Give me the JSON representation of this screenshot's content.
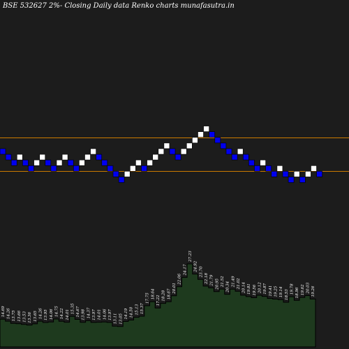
{
  "title": "BSE 532627 2%-  Closing Daily data  Renko  charts munafasutra.in",
  "colors": {
    "background": "#1c1c1c",
    "up_brick": "#ffffff",
    "down_brick": "#0000ee",
    "reference_line": "#cc7a00",
    "volume_fill": "#1e3a1e",
    "volume_line": "#000000",
    "label_text": "#ffffff"
  },
  "chart_data": [
    {
      "type": "renko",
      "title": "BSE 532627 2%-  Closing Daily data  Renko  charts munafasutra.in",
      "brick_size": "2%",
      "bricks": [
        {
          "level": 0,
          "dir": "down"
        },
        {
          "level": -1,
          "dir": "down"
        },
        {
          "level": -2,
          "dir": "down"
        },
        {
          "level": -1,
          "dir": "up"
        },
        {
          "level": -2,
          "dir": "down"
        },
        {
          "level": -3,
          "dir": "down"
        },
        {
          "level": -2,
          "dir": "up"
        },
        {
          "level": -1,
          "dir": "up"
        },
        {
          "level": -2,
          "dir": "down"
        },
        {
          "level": -3,
          "dir": "down"
        },
        {
          "level": -2,
          "dir": "up"
        },
        {
          "level": -1,
          "dir": "up"
        },
        {
          "level": -2,
          "dir": "down"
        },
        {
          "level": -3,
          "dir": "down"
        },
        {
          "level": -2,
          "dir": "up"
        },
        {
          "level": -1,
          "dir": "up"
        },
        {
          "level": 0,
          "dir": "up"
        },
        {
          "level": -1,
          "dir": "down"
        },
        {
          "level": -2,
          "dir": "down"
        },
        {
          "level": -3,
          "dir": "down"
        },
        {
          "level": -4,
          "dir": "down"
        },
        {
          "level": -5,
          "dir": "down"
        },
        {
          "level": -4,
          "dir": "up"
        },
        {
          "level": -3,
          "dir": "up"
        },
        {
          "level": -2,
          "dir": "up"
        },
        {
          "level": -3,
          "dir": "down"
        },
        {
          "level": -2,
          "dir": "up"
        },
        {
          "level": -1,
          "dir": "up"
        },
        {
          "level": 0,
          "dir": "up"
        },
        {
          "level": 1,
          "dir": "up"
        },
        {
          "level": 0,
          "dir": "down"
        },
        {
          "level": -1,
          "dir": "down"
        },
        {
          "level": 0,
          "dir": "up"
        },
        {
          "level": 1,
          "dir": "up"
        },
        {
          "level": 2,
          "dir": "up"
        },
        {
          "level": 3,
          "dir": "up"
        },
        {
          "level": 4,
          "dir": "up"
        },
        {
          "level": 3,
          "dir": "down"
        },
        {
          "level": 2,
          "dir": "down"
        },
        {
          "level": 1,
          "dir": "down"
        },
        {
          "level": 0,
          "dir": "down"
        },
        {
          "level": -1,
          "dir": "down"
        },
        {
          "level": 0,
          "dir": "up"
        },
        {
          "level": -1,
          "dir": "down"
        },
        {
          "level": -2,
          "dir": "down"
        },
        {
          "level": -3,
          "dir": "down"
        },
        {
          "level": -2,
          "dir": "up"
        },
        {
          "level": -3,
          "dir": "down"
        },
        {
          "level": -4,
          "dir": "down"
        },
        {
          "level": -3,
          "dir": "up"
        },
        {
          "level": -4,
          "dir": "down"
        },
        {
          "level": -5,
          "dir": "down"
        },
        {
          "level": -4,
          "dir": "up"
        },
        {
          "level": -5,
          "dir": "down"
        },
        {
          "level": -4,
          "dir": "up"
        },
        {
          "level": -3,
          "dir": "up"
        },
        {
          "level": -4,
          "dir": "down"
        }
      ],
      "reference_lines": [
        {
          "level": 2,
          "color": "#cc7a00"
        },
        {
          "level": -3.9,
          "color": "#cc7a00"
        }
      ]
    },
    {
      "type": "area",
      "labels": [
        "14.69",
        "14.26",
        "13.75",
        "13.66",
        "13.53",
        "13.36",
        "13.65",
        "14.26",
        "13.95",
        "14.06",
        "14.75",
        "14.22",
        "14.01",
        "15.35",
        "14.67",
        "13.98",
        "14.37",
        "13.97",
        "14.01",
        "14.06",
        "13.97",
        "13.11",
        "13.05",
        "14.19",
        "14.50",
        "15.13",
        "15.37",
        "17.75",
        "18.64",
        "17.22",
        "18.28",
        "18.67",
        "20.01",
        "22.06",
        "24.17",
        "27.23",
        "24.92",
        "23.70",
        "22.18",
        "21.79",
        "20.95",
        "21.52",
        "20.34",
        "21.49",
        "21.02",
        "20.14",
        "19.81",
        "19.56",
        "20.12",
        "19.87",
        "19.41",
        "19.25",
        "19.14",
        "18.53",
        "19.78",
        "18.96",
        "19.62",
        "20.03",
        "19.26"
      ],
      "values": [
        14.69,
        14.26,
        13.75,
        13.66,
        13.53,
        13.36,
        13.65,
        14.26,
        13.95,
        14.06,
        14.75,
        14.22,
        14.01,
        15.35,
        14.67,
        13.98,
        14.37,
        13.97,
        14.01,
        14.06,
        13.97,
        13.11,
        13.05,
        14.19,
        14.5,
        15.13,
        15.37,
        17.75,
        18.64,
        17.22,
        18.28,
        18.67,
        20.01,
        22.06,
        24.17,
        27.23,
        24.92,
        23.7,
        22.18,
        21.79,
        20.95,
        21.52,
        20.34,
        21.49,
        21.02,
        20.14,
        19.81,
        19.56,
        20.12,
        19.87,
        19.41,
        19.25,
        19.14,
        18.53,
        19.78,
        18.96,
        19.62,
        20.03,
        19.26
      ]
    }
  ]
}
